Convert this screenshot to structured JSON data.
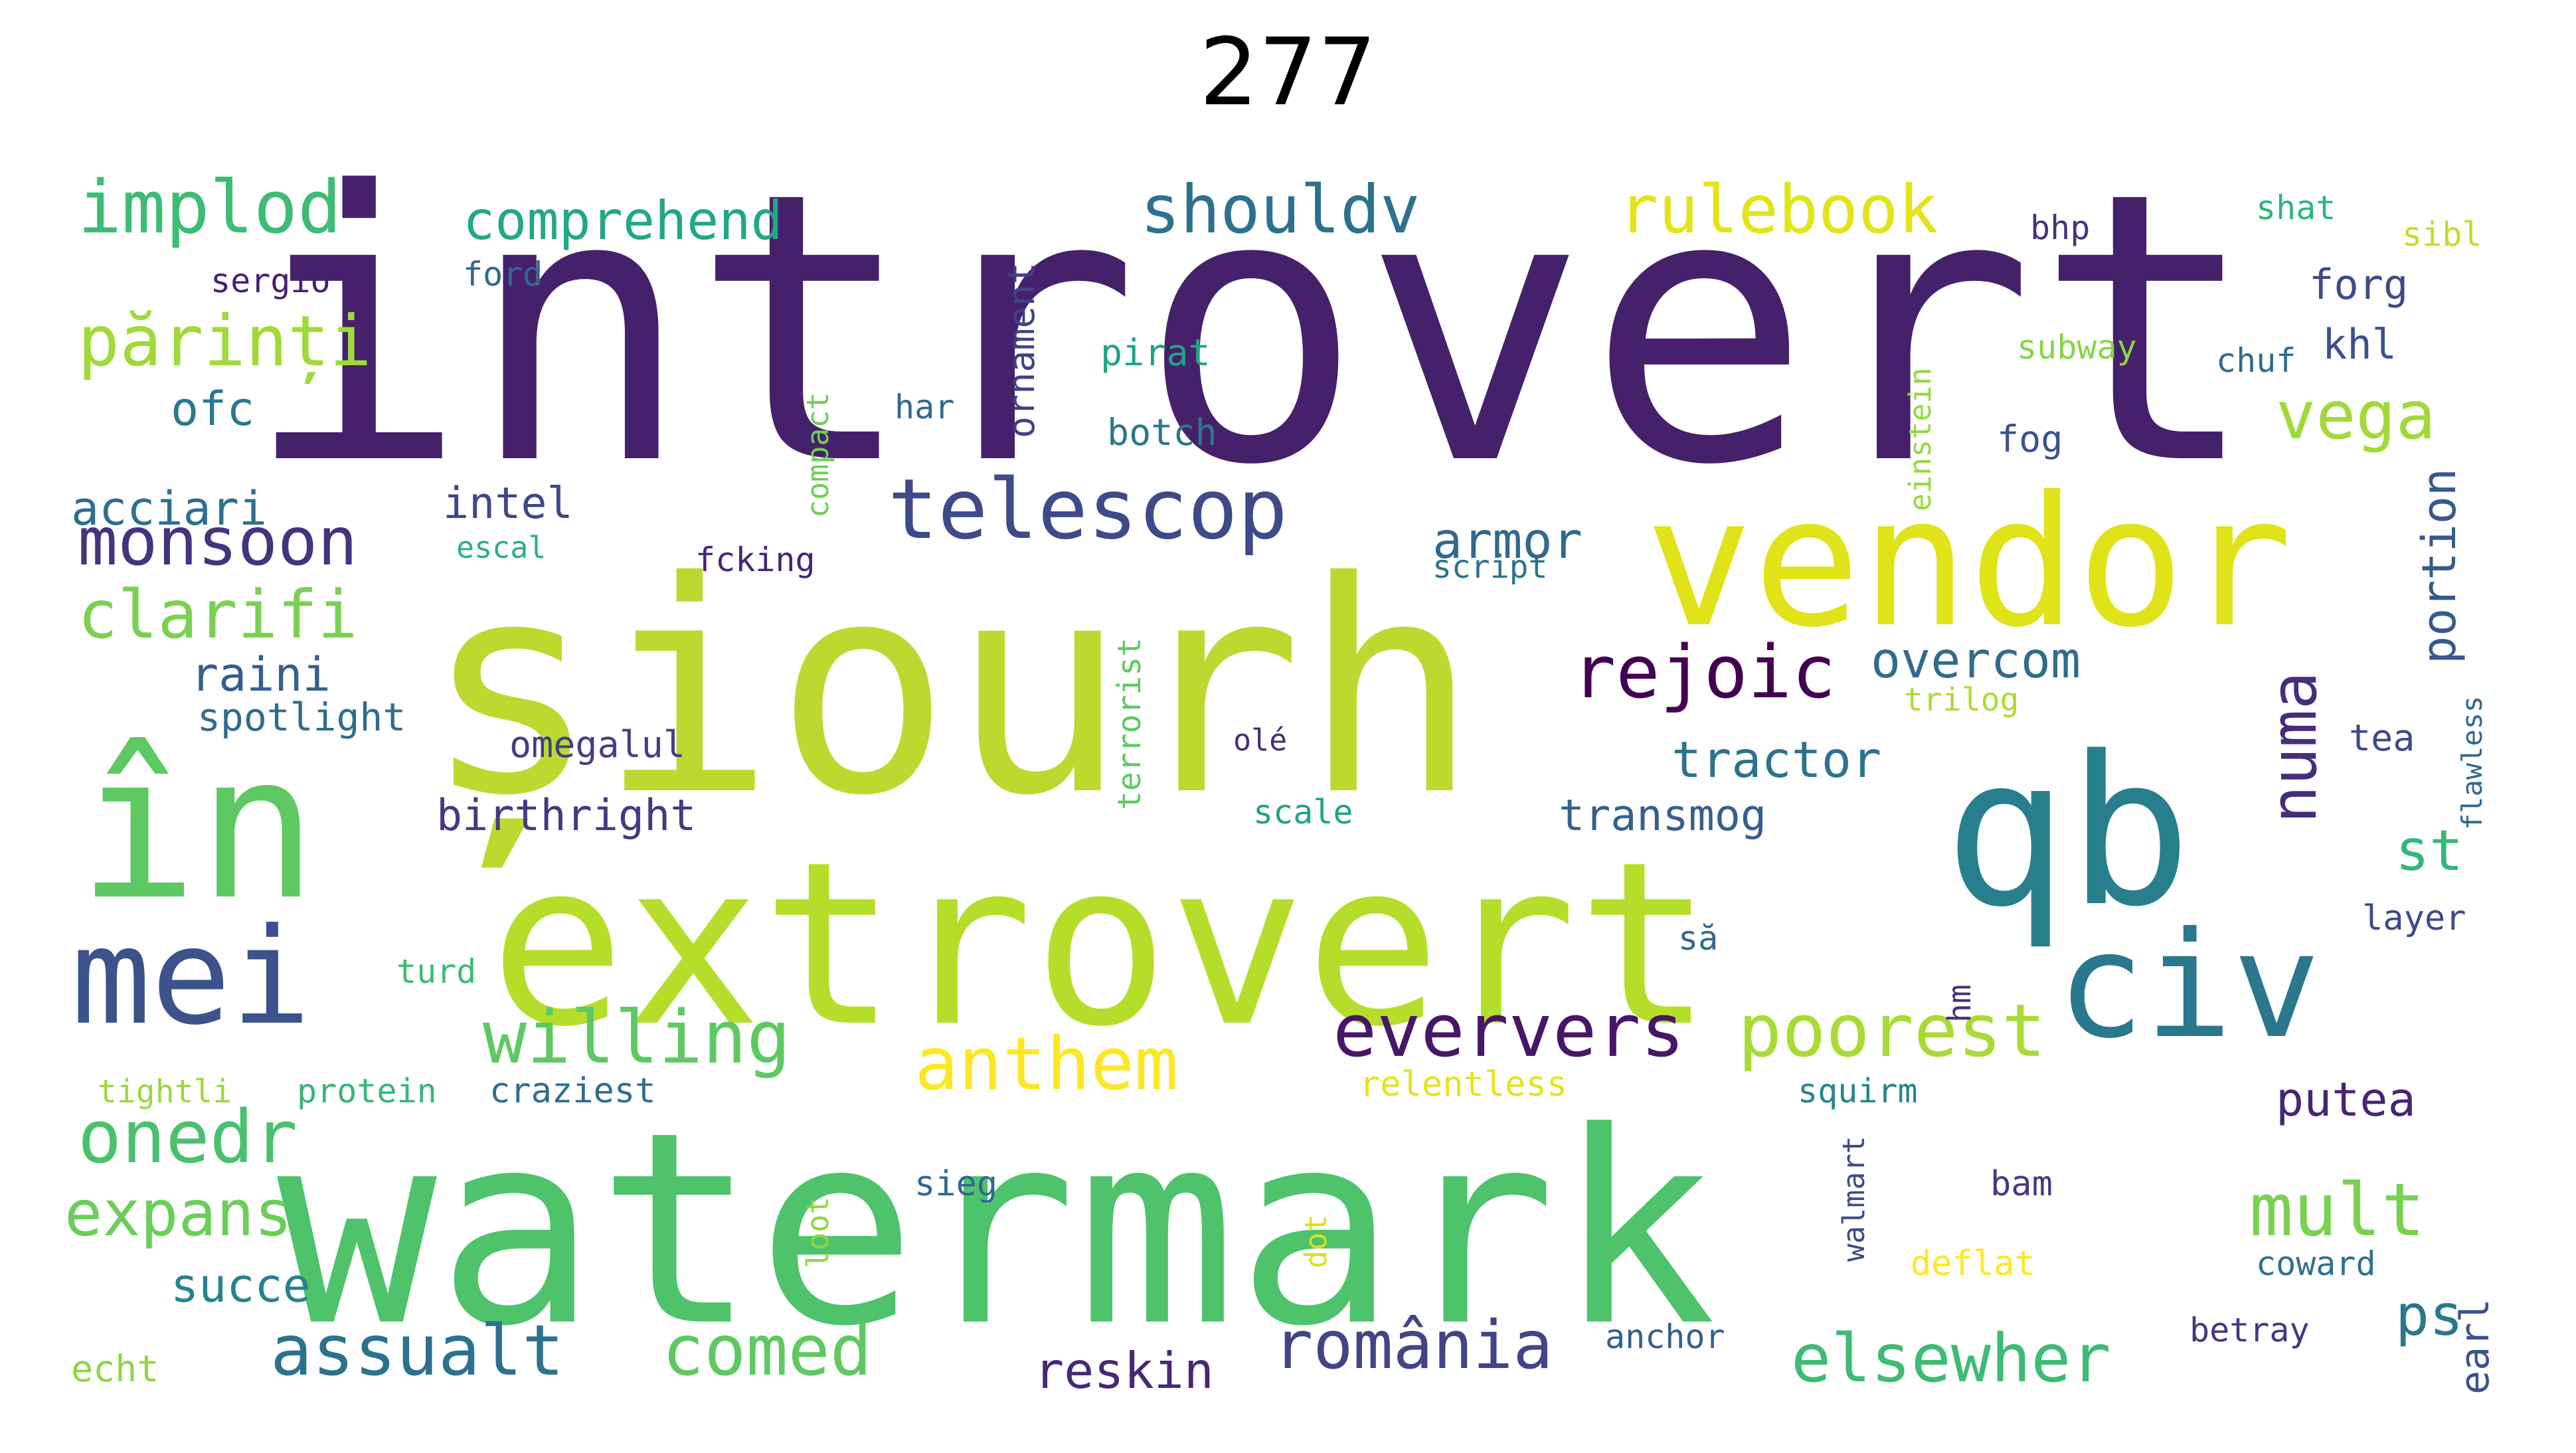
{
  "title": "277",
  "colors": {
    "background": "#ffffff",
    "palette": "viridis"
  },
  "words": [
    {
      "text": "introvert",
      "color": "#46216b"
    },
    {
      "text": "șiourh",
      "color": "#bcd92f"
    },
    {
      "text": "în",
      "color": "#5ec962"
    },
    {
      "text": "extrovert",
      "color": "#b5de2b"
    },
    {
      "text": "watermark",
      "color": "#4ec36b"
    },
    {
      "text": "vendor",
      "color": "#dfe318"
    },
    {
      "text": "qb",
      "color": "#277f8e"
    },
    {
      "text": "civ",
      "color": "#2a788e"
    },
    {
      "text": "mei",
      "color": "#3b528b"
    },
    {
      "text": "telescop",
      "color": "#3e4a89"
    },
    {
      "text": "rejoic",
      "color": "#440154"
    },
    {
      "text": "anthem",
      "color": "#fde725"
    },
    {
      "text": "eververs",
      "color": "#481668"
    },
    {
      "text": "poorest",
      "color": "#a8db34"
    },
    {
      "text": "onedr",
      "color": "#4ac16d"
    },
    {
      "text": "willing",
      "color": "#5ec962"
    },
    {
      "text": "implod",
      "color": "#3dbc74"
    },
    {
      "text": "părinți",
      "color": "#a0da39"
    },
    {
      "text": "monsoon",
      "color": "#46337e"
    },
    {
      "text": "clarifi",
      "color": "#7ad151"
    },
    {
      "text": "shouldv",
      "color": "#2c728e"
    },
    {
      "text": "rulebook",
      "color": "#e2e418"
    },
    {
      "text": "vega",
      "color": "#a0da39"
    },
    {
      "text": "numa",
      "color": "#472d7b"
    },
    {
      "text": "mult",
      "color": "#7ad151"
    },
    {
      "text": "st",
      "color": "#35b779"
    },
    {
      "text": "ps",
      "color": "#2a788e"
    },
    {
      "text": "expans",
      "color": "#6ccd5a"
    },
    {
      "text": "assualt",
      "color": "#2c728e"
    },
    {
      "text": "comed",
      "color": "#5ec962"
    },
    {
      "text": "românia",
      "color": "#414487"
    },
    {
      "text": "elsewher",
      "color": "#3dbc74"
    },
    {
      "text": "reskin",
      "color": "#482878"
    },
    {
      "text": "comprehend",
      "color": "#22a884"
    },
    {
      "text": "armor",
      "color": "#31688e"
    },
    {
      "text": "overcom",
      "color": "#2f6c8e"
    },
    {
      "text": "tractor",
      "color": "#2c728e"
    },
    {
      "text": "transmog",
      "color": "#355f8d"
    },
    {
      "text": "birthright",
      "color": "#443a83"
    },
    {
      "text": "acciari",
      "color": "#2e6e8e"
    },
    {
      "text": "intel",
      "color": "#3f4788"
    },
    {
      "text": "ofc",
      "color": "#2a788e"
    },
    {
      "text": "raini",
      "color": "#355f8d"
    },
    {
      "text": "spotlight",
      "color": "#2f6c8e"
    },
    {
      "text": "omegalul",
      "color": "#433e85"
    },
    {
      "text": "succe",
      "color": "#26828e"
    },
    {
      "text": "portion",
      "color": "#37598c"
    },
    {
      "text": "putea",
      "color": "#482475"
    },
    {
      "text": "earl",
      "color": "#3b528b"
    },
    {
      "text": "forg",
      "color": "#3e4a89"
    },
    {
      "text": "khl",
      "color": "#3b528b"
    },
    {
      "text": "sergio",
      "color": "#481f70"
    },
    {
      "text": "ford",
      "color": "#30698e"
    },
    {
      "text": "ornament",
      "color": "#424086"
    },
    {
      "text": "pirat",
      "color": "#20a386"
    },
    {
      "text": "botch",
      "color": "#2a788e"
    },
    {
      "text": "har",
      "color": "#31688e"
    },
    {
      "text": "compact",
      "color": "#6ece58"
    },
    {
      "text": "einstein",
      "color": "#95d840"
    },
    {
      "text": "subway",
      "color": "#86d549"
    },
    {
      "text": "chuf",
      "color": "#2f6c8e"
    },
    {
      "text": "fog",
      "color": "#3b528b"
    },
    {
      "text": "shat",
      "color": "#2fb47c"
    },
    {
      "text": "sibl",
      "color": "#bddf26"
    },
    {
      "text": "bhp",
      "color": "#46337e"
    },
    {
      "text": "escal",
      "color": "#2ab07f"
    },
    {
      "text": "fcking",
      "color": "#482475"
    },
    {
      "text": "script",
      "color": "#2c728e"
    },
    {
      "text": "terrorist",
      "color": "#5ec962"
    },
    {
      "text": "trilog",
      "color": "#addc30"
    },
    {
      "text": "olé",
      "color": "#472c7a"
    },
    {
      "text": "scale",
      "color": "#20a386"
    },
    {
      "text": "tea",
      "color": "#3e4a89"
    },
    {
      "text": "flawless",
      "color": "#31688e"
    },
    {
      "text": "layer",
      "color": "#3e4a89"
    },
    {
      "text": "să",
      "color": "#31688e"
    },
    {
      "text": "hm",
      "color": "#472f7d"
    },
    {
      "text": "turd",
      "color": "#3dbc74"
    },
    {
      "text": "tightli",
      "color": "#9bd93c"
    },
    {
      "text": "protein",
      "color": "#35b779"
    },
    {
      "text": "craziest",
      "color": "#2e6e8e"
    },
    {
      "text": "relentless",
      "color": "#e5e419"
    },
    {
      "text": "squirm",
      "color": "#25858e"
    },
    {
      "text": "sieg",
      "color": "#31688e"
    },
    {
      "text": "loot",
      "color": "#90d743"
    },
    {
      "text": "dot",
      "color": "#d8e219"
    },
    {
      "text": "walmart",
      "color": "#3e4c8a"
    },
    {
      "text": "bam",
      "color": "#443983"
    },
    {
      "text": "deflat",
      "color": "#fde725"
    },
    {
      "text": "coward",
      "color": "#2c728e"
    },
    {
      "text": "echt",
      "color": "#8ed645"
    },
    {
      "text": "anchor",
      "color": "#355f8d"
    },
    {
      "text": "betray",
      "color": "#453781"
    }
  ]
}
